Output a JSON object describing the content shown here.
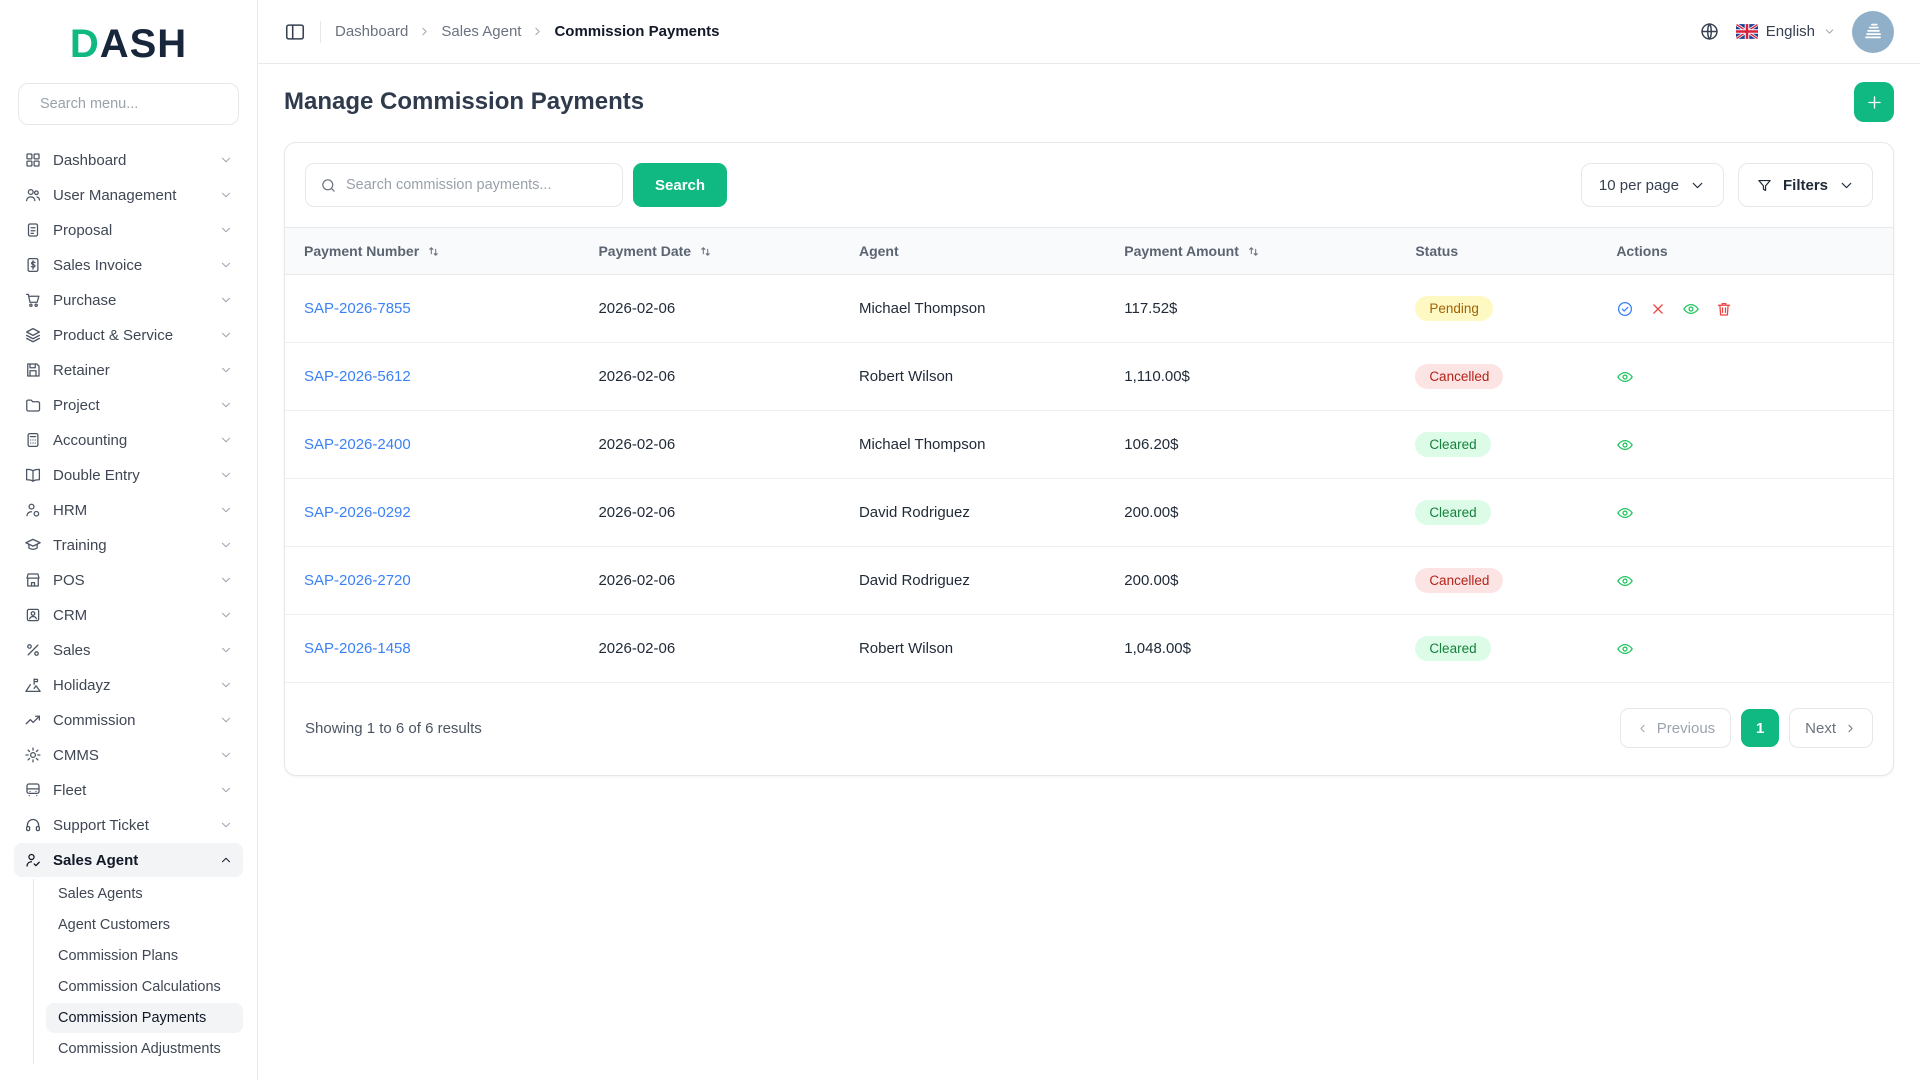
{
  "colors": {
    "primary": "#10b981",
    "link": "#3b82f6",
    "pending_bg": "#fef9c3",
    "pending_text": "#a16207",
    "cancelled_bg": "#fde4e4",
    "cancelled_text": "#b42318",
    "cleared_bg": "#dcfce7",
    "cleared_text": "#15803d"
  },
  "sidebar": {
    "logo_accent": "D",
    "logo_rest": "ASH",
    "search_placeholder": "Search menu...",
    "items": [
      {
        "label": "Dashboard",
        "icon": "dashboard"
      },
      {
        "label": "User Management",
        "icon": "user-management"
      },
      {
        "label": "Proposal",
        "icon": "proposal"
      },
      {
        "label": "Sales Invoice",
        "icon": "sales-invoice"
      },
      {
        "label": "Purchase",
        "icon": "purchase"
      },
      {
        "label": "Product & Service",
        "icon": "product-service"
      },
      {
        "label": "Retainer",
        "icon": "retainer"
      },
      {
        "label": "Project",
        "icon": "project"
      },
      {
        "label": "Accounting",
        "icon": "accounting"
      },
      {
        "label": "Double Entry",
        "icon": "double-entry"
      },
      {
        "label": "HRM",
        "icon": "hrm"
      },
      {
        "label": "Training",
        "icon": "training"
      },
      {
        "label": "POS",
        "icon": "pos"
      },
      {
        "label": "CRM",
        "icon": "crm"
      },
      {
        "label": "Sales",
        "icon": "sales"
      },
      {
        "label": "Holidayz",
        "icon": "holidayz"
      },
      {
        "label": "Commission",
        "icon": "commission"
      },
      {
        "label": "CMMS",
        "icon": "cmms"
      },
      {
        "label": "Fleet",
        "icon": "fleet"
      },
      {
        "label": "Support Ticket",
        "icon": "support-ticket"
      },
      {
        "label": "Sales Agent",
        "icon": "sales-agent",
        "active": true,
        "expanded": true,
        "children": [
          "Sales Agents",
          "Agent Customers",
          "Commission Plans",
          "Commission Calculations",
          "Commission Payments",
          "Commission Adjustments"
        ],
        "active_child": "Commission Payments"
      }
    ]
  },
  "header": {
    "breadcrumb": [
      "Dashboard",
      "Sales Agent",
      "Commission Payments"
    ],
    "language": "English"
  },
  "page": {
    "title": "Manage Commission Payments"
  },
  "toolbar": {
    "search_placeholder": "Search commission payments...",
    "search_button": "Search",
    "per_page": "10 per page",
    "filters": "Filters"
  },
  "table": {
    "columns": [
      {
        "label": "Payment Number",
        "sortable": true
      },
      {
        "label": "Payment Date",
        "sortable": true
      },
      {
        "label": "Agent",
        "sortable": false
      },
      {
        "label": "Payment Amount",
        "sortable": true
      },
      {
        "label": "Status",
        "sortable": false
      },
      {
        "label": "Actions",
        "sortable": false
      }
    ],
    "rows": [
      {
        "payment_number": "SAP-2026-7855",
        "payment_date": "2026-02-06",
        "agent": "Michael Thompson",
        "amount": "117.52$",
        "status": "Pending",
        "actions": [
          "approve",
          "cancel",
          "view",
          "delete"
        ]
      },
      {
        "payment_number": "SAP-2026-5612",
        "payment_date": "2026-02-06",
        "agent": "Robert Wilson",
        "amount": "1,110.00$",
        "status": "Cancelled",
        "actions": [
          "view"
        ]
      },
      {
        "payment_number": "SAP-2026-2400",
        "payment_date": "2026-02-06",
        "agent": "Michael Thompson",
        "amount": "106.20$",
        "status": "Cleared",
        "actions": [
          "view"
        ]
      },
      {
        "payment_number": "SAP-2026-0292",
        "payment_date": "2026-02-06",
        "agent": "David Rodriguez",
        "amount": "200.00$",
        "status": "Cleared",
        "actions": [
          "view"
        ]
      },
      {
        "payment_number": "SAP-2026-2720",
        "payment_date": "2026-02-06",
        "agent": "David Rodriguez",
        "amount": "200.00$",
        "status": "Cancelled",
        "actions": [
          "view"
        ]
      },
      {
        "payment_number": "SAP-2026-1458",
        "payment_date": "2026-02-06",
        "agent": "Robert Wilson",
        "amount": "1,048.00$",
        "status": "Cleared",
        "actions": [
          "view"
        ]
      }
    ]
  },
  "footer": {
    "showing": "Showing 1 to 6 of 6 results",
    "previous": "Previous",
    "current_page": "1",
    "next": "Next"
  }
}
